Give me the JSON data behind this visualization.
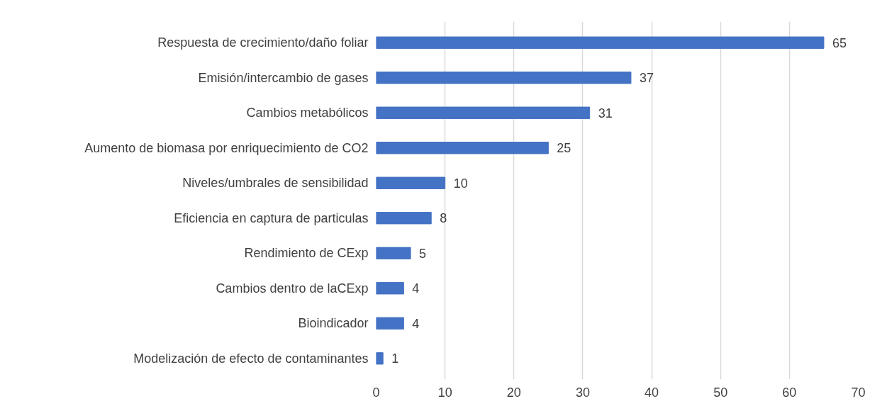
{
  "chart_data": {
    "type": "bar",
    "orientation": "horizontal",
    "categories": [
      "Respuesta de crecimiento/daño foliar",
      "Emisión/intercambio de gases",
      "Cambios metabólicos",
      "Aumento de biomasa por enriquecimiento de CO2",
      "Niveles/umbrales de sensibilidad",
      "Eficiencia en captura de particulas",
      "Rendimiento de CExp",
      "Cambios dentro de laCExp",
      "Bioindicador",
      "Modelización de efecto de contaminantes"
    ],
    "values": [
      65,
      37,
      31,
      25,
      10,
      8,
      5,
      4,
      4,
      1
    ],
    "color": "#4472c4",
    "xlim": [
      0,
      70
    ],
    "xticks": [
      0,
      10,
      20,
      30,
      40,
      50,
      60,
      70
    ],
    "grid": "x",
    "data_labels": true
  }
}
